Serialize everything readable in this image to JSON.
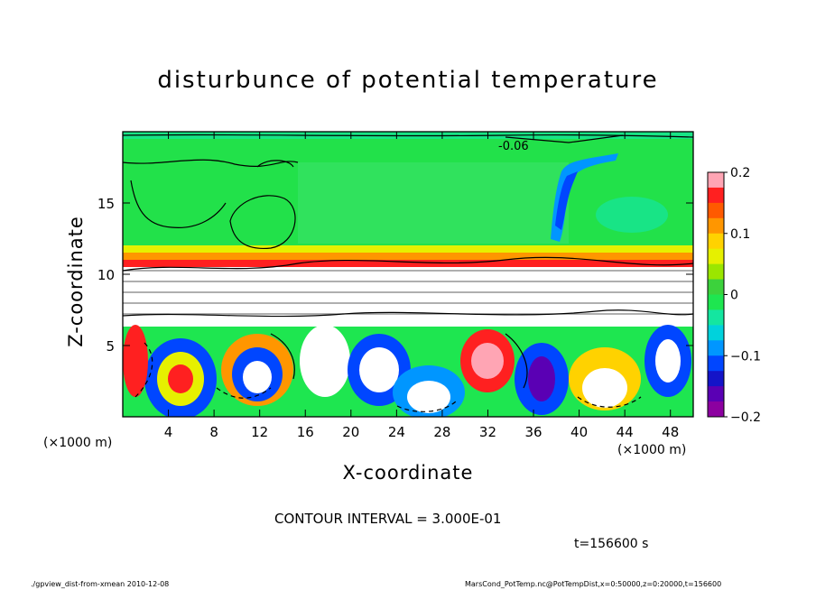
{
  "chart_data": {
    "type": "heatmap",
    "title": "disturbunce of potential temperature",
    "xlabel": "X-coordinate",
    "ylabel": "Z-coordinate",
    "x_unit_label": "(×1000 m)",
    "xlim": [
      0,
      50
    ],
    "ylim": [
      0,
      20
    ],
    "x_ticks": [
      "4",
      "8",
      "12",
      "16",
      "20",
      "24",
      "28",
      "32",
      "36",
      "40",
      "44",
      "48"
    ],
    "y_ticks": [
      "5",
      "10",
      "15"
    ],
    "colorbar": {
      "range": [
        -0.2,
        0.2
      ],
      "tick_labels": [
        "0.2",
        "0.1",
        "0",
        "−0.1",
        "−0.2"
      ],
      "colors": [
        "#ffa5b4",
        "#ff2020",
        "#ff5a00",
        "#ff9600",
        "#ffd200",
        "#e6f000",
        "#9be600",
        "#3cd23c",
        "#1ee650",
        "#14e6a0",
        "#00d2dc",
        "#0096ff",
        "#0046ff",
        "#1414c8",
        "#5a00b4",
        "#8c00a0"
      ]
    },
    "contour_label": "-0.06",
    "contour_interval_text": "CONTOUR INTERVAL = 3.000E-01",
    "time_text": "t=156600 s"
  },
  "footer": {
    "left": "./gpview_dist-from-xmean  2010-12-08",
    "right": "MarsCond_PotTemp.nc@PotTempDist,x=0:50000,z=0:20000,t=156600"
  }
}
